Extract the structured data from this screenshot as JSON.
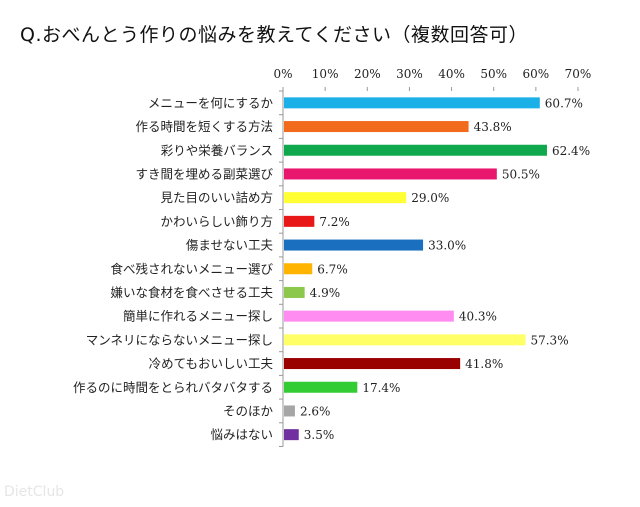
{
  "chart_data": {
    "type": "bar",
    "orientation": "horizontal",
    "title": "Q.おべんとう作りの悩みを教えてください（複数回答可）",
    "xlabel": "",
    "ylabel": "",
    "xlim": [
      0,
      70
    ],
    "ticks": [
      "0%",
      "10%",
      "20%",
      "30%",
      "40%",
      "50%",
      "60%",
      "70%"
    ],
    "tick_values": [
      0,
      10,
      20,
      30,
      40,
      50,
      60,
      70
    ],
    "grid": false,
    "categories": [
      "メニューを何にするか",
      "作る時間を短くする方法",
      "彩りや栄養バランス",
      "すき間を埋める副菜選び",
      "見た目のいい詰め方",
      "かわいらしい飾り方",
      "傷ませない工夫",
      "食べ残されないメニュー選び",
      "嫌いな食材を食べさせる工夫",
      "簡単に作れるメニュー探し",
      "マンネリにならないメニュー探し",
      "冷めてもおいしい工夫",
      "作るのに時間をとられバタバタする",
      "そのほか",
      "悩みはない"
    ],
    "values": [
      60.7,
      43.8,
      62.4,
      50.5,
      29.0,
      7.2,
      33.0,
      6.7,
      4.9,
      40.3,
      57.3,
      41.8,
      17.4,
      2.6,
      3.5
    ],
    "value_labels": [
      "60.7%",
      "43.8%",
      "62.4%",
      "50.5%",
      "29.0%",
      "7.2%",
      "33.0%",
      "6.7%",
      "4.9%",
      "40.3%",
      "57.3%",
      "41.8%",
      "17.4%",
      "2.6%",
      "3.5%"
    ],
    "colors": [
      "#1cb0e8",
      "#f26b1d",
      "#10a84c",
      "#e8176d",
      "#ffff33",
      "#e81818",
      "#1b6fbf",
      "#ffb400",
      "#8cc84b",
      "#ff8cf0",
      "#ffff66",
      "#990000",
      "#33cc33",
      "#a6a6a6",
      "#7030a0"
    ]
  },
  "watermark": "DietClub"
}
